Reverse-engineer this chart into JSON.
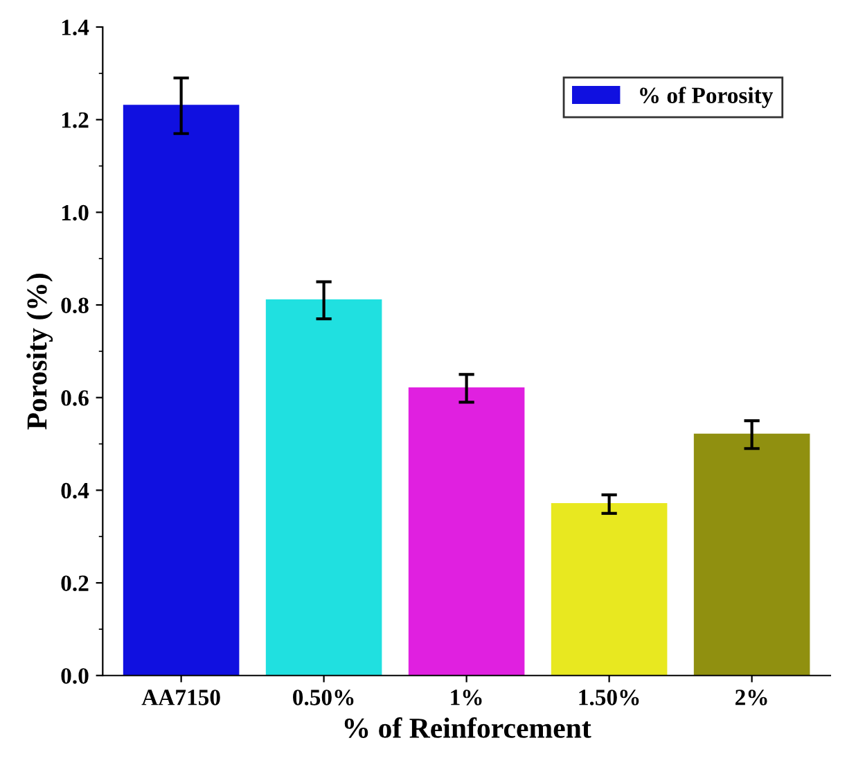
{
  "chart_data": {
    "type": "bar",
    "xlabel": "% of Reinforcement",
    "ylabel": "Porosity (%)",
    "categories": [
      "AA7150",
      "0.50%",
      "1%",
      "1.50%",
      "2%"
    ],
    "series": [
      {
        "name": "% of Porosity",
        "color": "#1010e0",
        "colors": [
          "#1010e0",
          "#20e0e0",
          "#e020e0",
          "#e8e820",
          "#909010"
        ],
        "values": [
          1.23,
          0.81,
          0.62,
          0.37,
          0.52
        ],
        "errors": [
          0.06,
          0.04,
          0.03,
          0.02,
          0.03
        ]
      }
    ],
    "ylim": [
      0,
      1.4
    ],
    "yticks": [
      {
        "value": 0,
        "label": "0.0"
      },
      0.2,
      0.4,
      0.6,
      0.8,
      {
        "value": 1,
        "label": "1.0"
      },
      1.2,
      1.4
    ],
    "legend": "top right",
    "grid": false
  }
}
